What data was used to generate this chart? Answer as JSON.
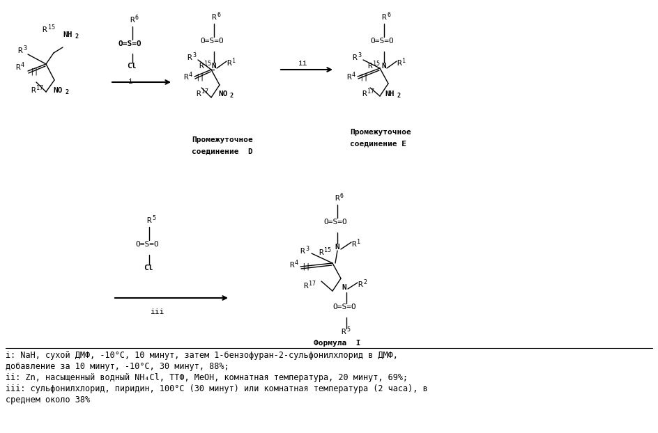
{
  "background_color": "#ffffff",
  "fig_width": 9.44,
  "fig_height": 6.22,
  "dpi": 100,
  "footnote_lines": [
    "i: NaH, сухой ДМФ, -10°C, 10 минут, затем 1-бензофуран-2-сульфонилхлорид в ДМФ,",
    "добавление за 10 минут, -10°C, 30 минут, 88%;",
    "ii: Zn, насыщенный водный NH₄Cl, ТТФ, МеОН, комнатная температура, 20 минут, 69%;",
    "iii: сульфонилхлорид, пиридин, 100°C (30 минут) или комнатная температура (2 часа), в",
    "среднем около 38%"
  ]
}
